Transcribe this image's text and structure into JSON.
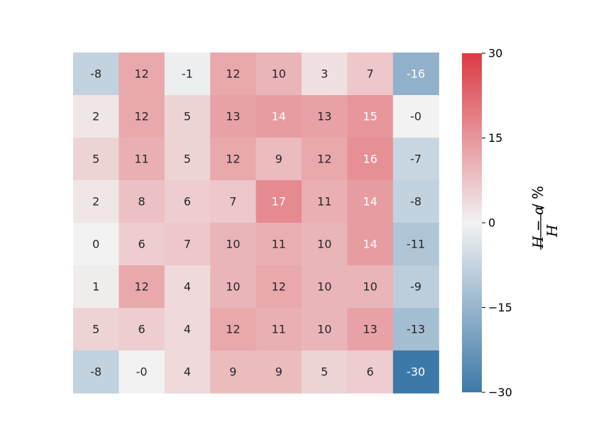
{
  "chart_data": {
    "type": "heatmap",
    "title": "",
    "xlabel": "",
    "ylabel": "",
    "rows": [
      [
        "-8",
        "12",
        "-1",
        "12",
        "10",
        "3",
        "7",
        "-16"
      ],
      [
        "2",
        "12",
        "5",
        "13",
        "14",
        "13",
        "15",
        "-0"
      ],
      [
        "5",
        "11",
        "5",
        "12",
        "9",
        "12",
        "16",
        "-7"
      ],
      [
        "2",
        "8",
        "6",
        "7",
        "17",
        "11",
        "14",
        "-8"
      ],
      [
        "0",
        "6",
        "7",
        "10",
        "11",
        "10",
        "14",
        "-11"
      ],
      [
        "1",
        "12",
        "4",
        "10",
        "12",
        "10",
        "10",
        "-9"
      ],
      [
        "5",
        "6",
        "4",
        "12",
        "11",
        "10",
        "13",
        "-13"
      ],
      [
        "-8",
        "-0",
        "4",
        "9",
        "9",
        "5",
        "6",
        "-30"
      ]
    ],
    "colorbar": {
      "min": -30,
      "max": 30,
      "ticks": [
        30,
        15,
        0,
        -15,
        -30
      ],
      "tick_labels": [
        "30",
        "15",
        "0",
        "−15",
        "−30"
      ],
      "label": "(H − α) / H  / %",
      "colors": {
        "low": "#3d79a8",
        "mid": "#f2f2f2",
        "high": "#db3a44"
      }
    }
  }
}
